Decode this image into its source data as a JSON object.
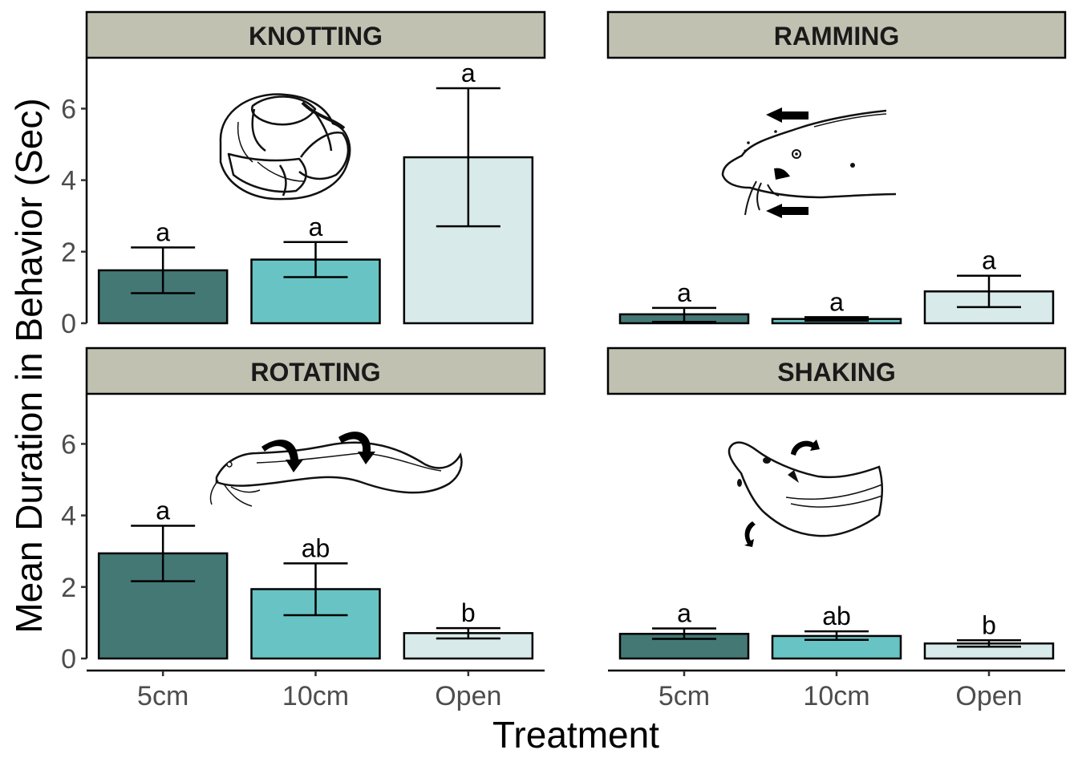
{
  "chart_data": {
    "type": "bar",
    "xlabel": "Treatment",
    "ylabel": "Mean Duration in Behavior (Sec)",
    "ylim": [
      0,
      7.4
    ],
    "yticks": [
      0,
      2,
      4,
      6
    ],
    "categories": [
      "5cm",
      "10cm",
      "Open"
    ],
    "colors": {
      "5cm": "#447875",
      "10cm": "#68c3c4",
      "Open": "#d8eaea"
    },
    "strip_fill": "#c1c1b2",
    "facets": [
      {
        "title": "KNOTTING",
        "illustration": "knotted-eel-icon",
        "values": [
          1.48,
          1.78,
          4.64
        ],
        "error_low": [
          0.84,
          1.29,
          2.71
        ],
        "error_high": [
          2.12,
          2.27,
          6.57
        ],
        "labels": [
          "a",
          "a",
          "a"
        ]
      },
      {
        "title": "RAMMING",
        "illustration": "ramming-eel-icon",
        "values": [
          0.25,
          0.12,
          0.89
        ],
        "error_low": [
          0.04,
          0.07,
          0.45
        ],
        "error_high": [
          0.43,
          0.17,
          1.33
        ],
        "labels": [
          "a",
          "a",
          "a"
        ]
      },
      {
        "title": "ROTATING",
        "illustration": "rotating-eel-icon",
        "values": [
          2.94,
          1.94,
          0.71
        ],
        "error_low": [
          2.16,
          1.21,
          0.56
        ],
        "error_high": [
          3.71,
          2.66,
          0.85
        ],
        "labels": [
          "a",
          "ab",
          "b"
        ]
      },
      {
        "title": "SHAKING",
        "illustration": "shaking-eel-icon",
        "values": [
          0.69,
          0.63,
          0.42
        ],
        "error_low": [
          0.55,
          0.52,
          0.33
        ],
        "error_high": [
          0.84,
          0.76,
          0.51
        ],
        "labels": [
          "a",
          "ab",
          "b"
        ]
      }
    ]
  }
}
